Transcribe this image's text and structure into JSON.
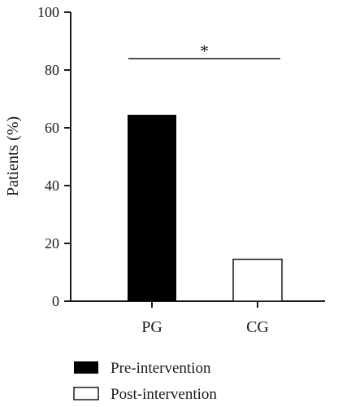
{
  "chart_data": {
    "type": "bar",
    "title": "",
    "xlabel": "",
    "ylabel": "Patients (%)",
    "ylim": [
      0,
      100
    ],
    "yticks": [
      "0",
      "20",
      "40",
      "60",
      "80",
      "100"
    ],
    "categories": [
      "PG",
      "CG"
    ],
    "bars": [
      {
        "category": "PG",
        "value": 64.5,
        "series": "Pre-intervention"
      },
      {
        "category": "CG",
        "value": 14.5,
        "series": "Post-intervention"
      }
    ],
    "series": [
      {
        "name": "Pre-intervention",
        "color": "#000000",
        "fill": "solid"
      },
      {
        "name": "Post-intervention",
        "color": "#ffffff",
        "fill": "outline"
      }
    ],
    "significance": {
      "from": "PG",
      "to": "CG",
      "label": "*"
    },
    "legend_position": "bottom-left",
    "grid": false
  }
}
